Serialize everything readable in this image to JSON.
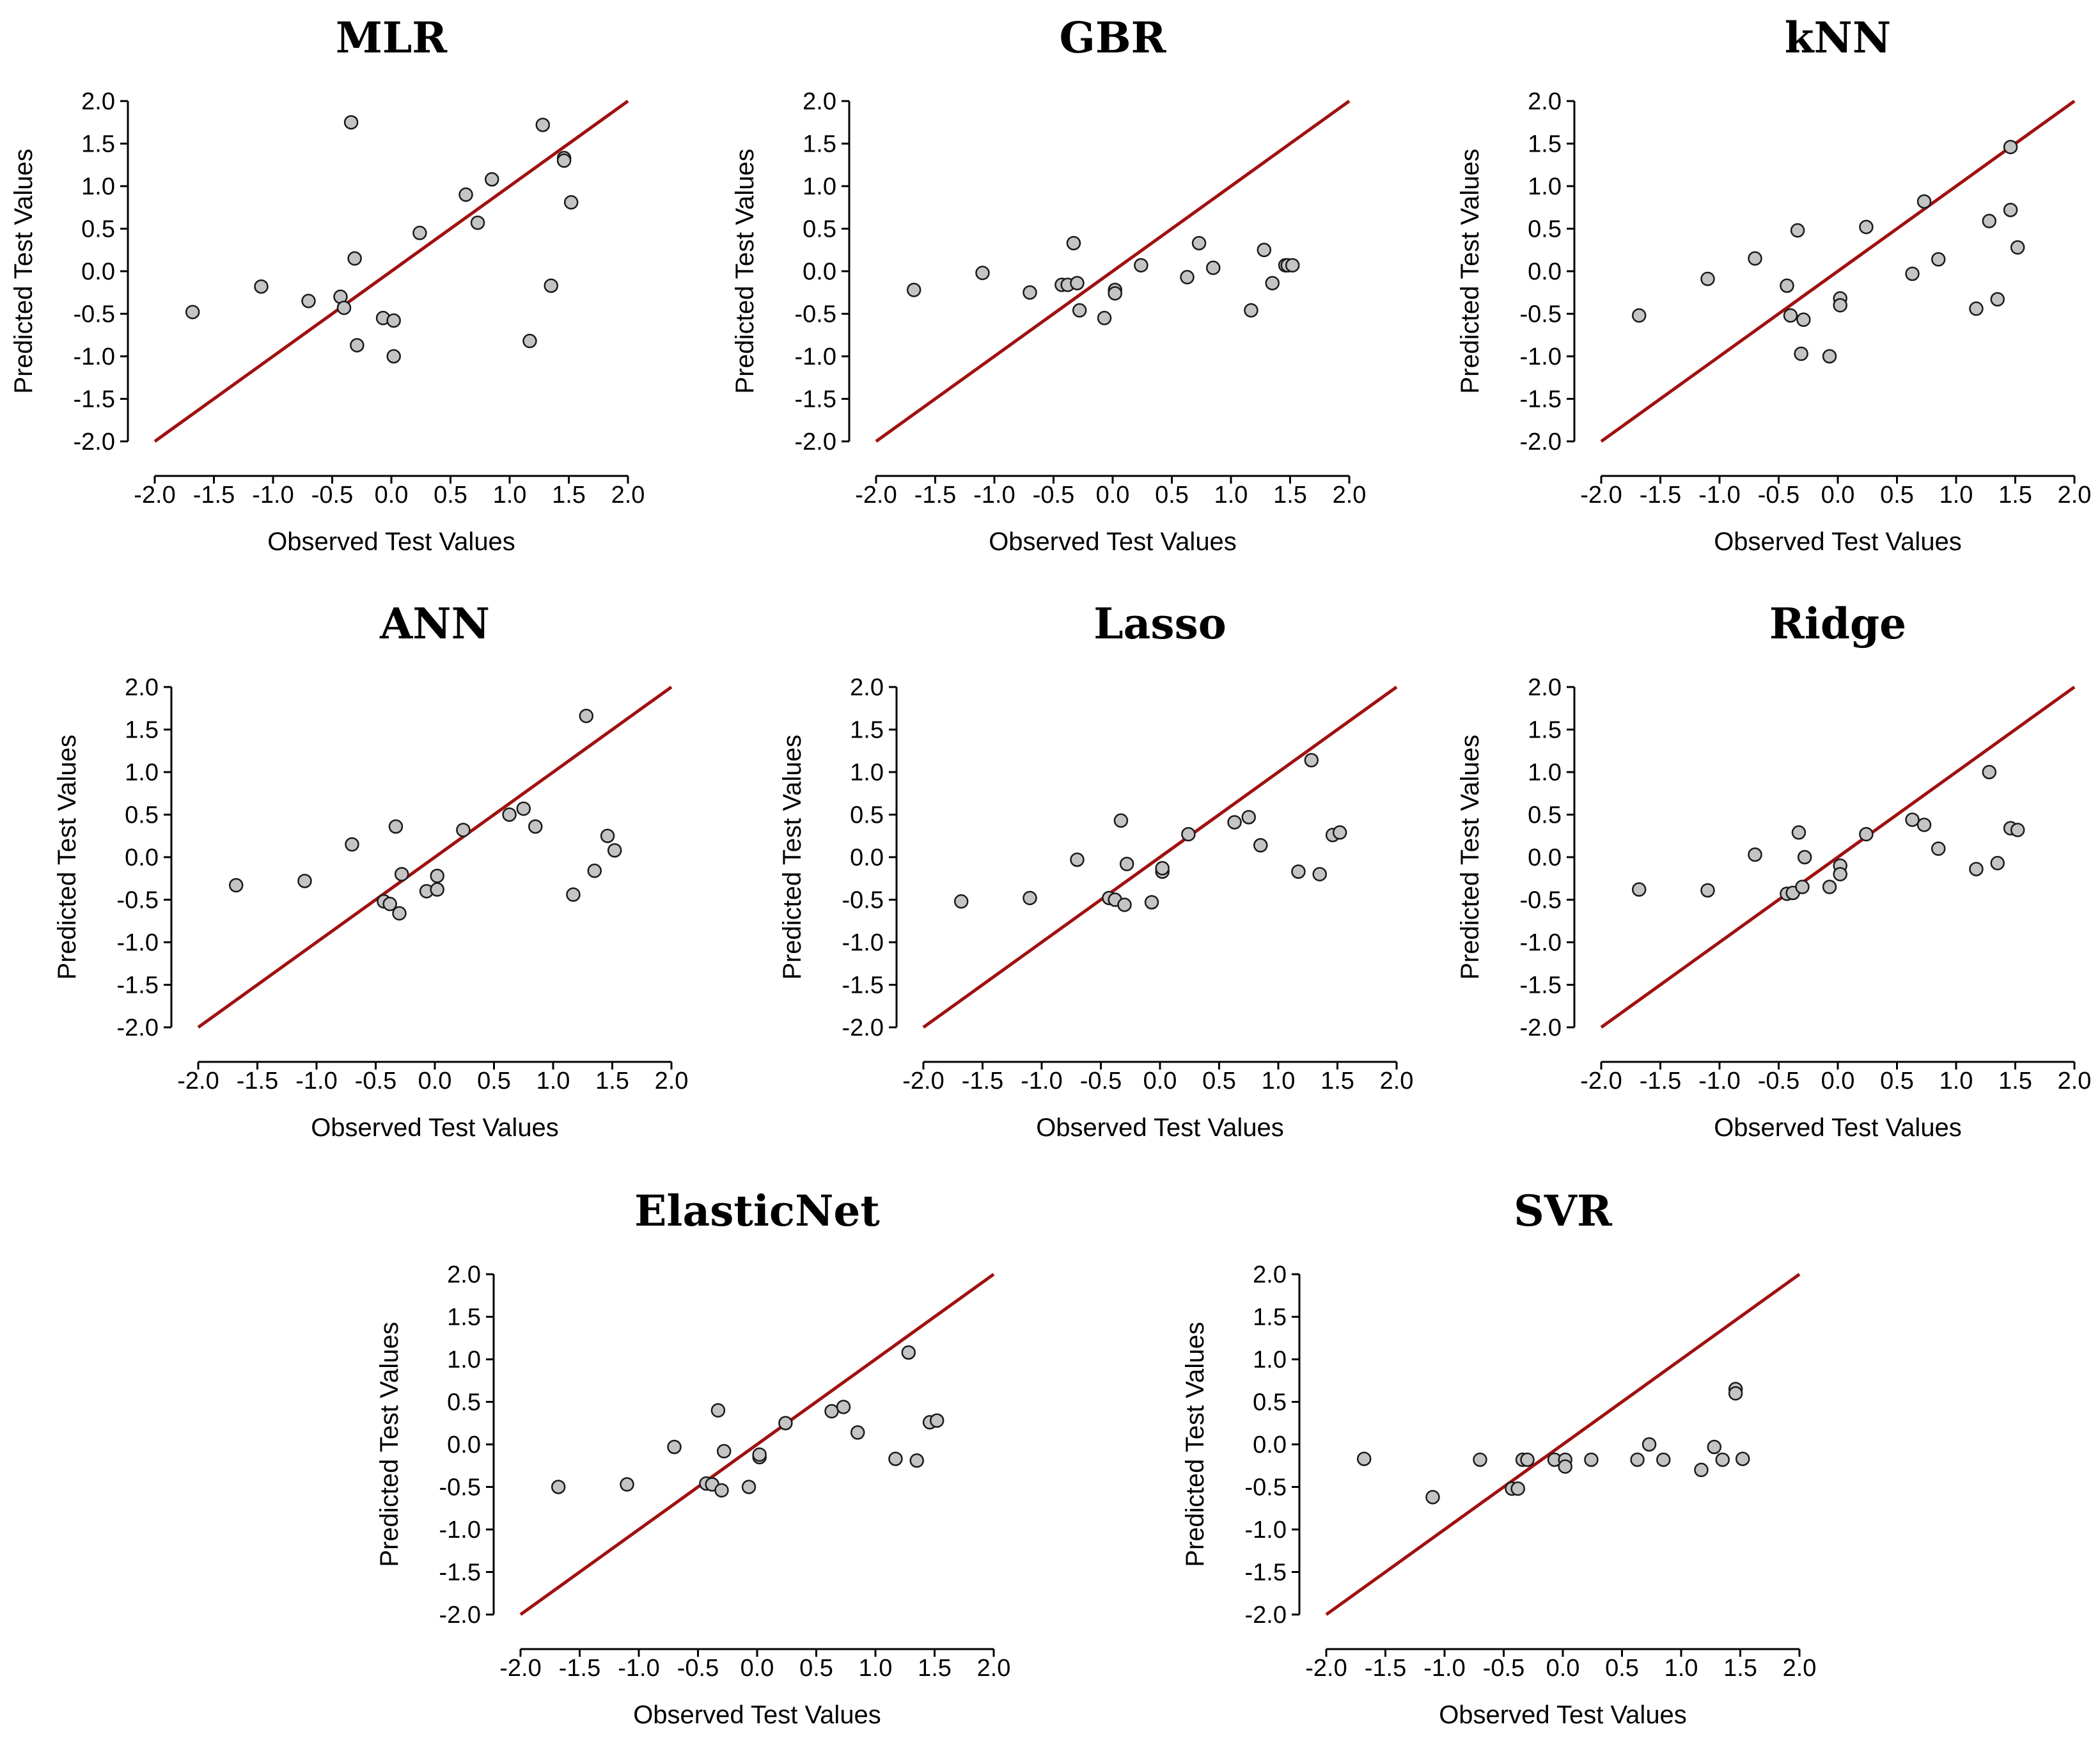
{
  "chart_data": [
    {
      "type": "scatter",
      "title": "MLR",
      "xlabel": "Observed Test Values",
      "ylabel": "Predicted Test Values",
      "xlim": [
        -2.0,
        2.0
      ],
      "ylim": [
        -2.0,
        2.0
      ],
      "xticks": [
        "-2.0",
        "-1.5",
        "-1.0",
        "-0.5",
        "0.0",
        "0.5",
        "1.0",
        "1.5",
        "2.0"
      ],
      "yticks": [
        "-2.0",
        "-1.5",
        "-1.0",
        "-0.5",
        "0.0",
        "0.5",
        "1.0",
        "1.5",
        "2.0"
      ],
      "reference_line": "y = x",
      "colors": {
        "line": "#a01010",
        "point_fill": "#c4c4c4",
        "point_edge": "#1a1a1a"
      },
      "x": [
        -1.68,
        -1.1,
        -0.7,
        -0.43,
        -0.4,
        -0.34,
        -0.31,
        -0.29,
        -0.07,
        0.02,
        0.02,
        0.24,
        0.63,
        0.73,
        0.85,
        1.17,
        1.28,
        1.35,
        1.46,
        1.46,
        1.52
      ],
      "y": [
        -0.48,
        -0.18,
        -0.35,
        -0.3,
        -0.43,
        1.75,
        0.15,
        -0.87,
        -0.55,
        -0.58,
        -1.0,
        0.45,
        0.9,
        0.57,
        1.08,
        -0.82,
        1.72,
        -0.17,
        1.33,
        1.3,
        0.81
      ]
    },
    {
      "type": "scatter",
      "title": "GBR",
      "xlabel": "Observed Test Values",
      "ylabel": "Predicted Test Values",
      "xlim": [
        -2.0,
        2.0
      ],
      "ylim": [
        -2.0,
        2.0
      ],
      "xticks": [
        "-2.0",
        "-1.5",
        "-1.0",
        "-0.5",
        "0.0",
        "0.5",
        "1.0",
        "1.5",
        "2.0"
      ],
      "yticks": [
        "-2.0",
        "-1.5",
        "-1.0",
        "-0.5",
        "0.0",
        "0.5",
        "1.0",
        "1.5",
        "2.0"
      ],
      "reference_line": "y = x",
      "colors": {
        "line": "#a01010",
        "point_fill": "#c4c4c4",
        "point_edge": "#1a1a1a"
      },
      "x": [
        -1.68,
        -1.1,
        -0.7,
        -0.43,
        -0.38,
        -0.33,
        -0.3,
        -0.28,
        -0.07,
        0.02,
        0.02,
        0.24,
        0.63,
        0.73,
        0.85,
        1.17,
        1.28,
        1.35,
        1.46,
        1.48,
        1.52
      ],
      "y": [
        -0.22,
        -0.02,
        -0.25,
        -0.16,
        -0.16,
        0.33,
        -0.14,
        -0.46,
        -0.55,
        -0.22,
        -0.26,
        0.07,
        -0.07,
        0.33,
        0.04,
        -0.46,
        0.25,
        -0.14,
        0.07,
        0.07,
        0.07
      ]
    },
    {
      "type": "scatter",
      "title": "kNN",
      "xlabel": "Observed Test Values",
      "ylabel": "Predicted Test Values",
      "xlim": [
        -2.0,
        2.0
      ],
      "ylim": [
        -2.0,
        2.0
      ],
      "xticks": [
        "-2.0",
        "-1.5",
        "-1.0",
        "-0.5",
        "0.0",
        "0.5",
        "1.0",
        "1.5",
        "2.0"
      ],
      "yticks": [
        "-2.0",
        "-1.5",
        "-1.0",
        "-0.5",
        "0.0",
        "0.5",
        "1.0",
        "1.5",
        "2.0"
      ],
      "reference_line": "y = x",
      "colors": {
        "line": "#a01010",
        "point_fill": "#c4c4c4",
        "point_edge": "#1a1a1a"
      },
      "x": [
        -1.68,
        -1.1,
        -0.7,
        -0.43,
        -0.4,
        -0.34,
        -0.31,
        -0.29,
        -0.07,
        0.02,
        0.02,
        0.24,
        0.63,
        0.73,
        0.85,
        1.17,
        1.28,
        1.35,
        1.46,
        1.46,
        1.52
      ],
      "y": [
        -0.52,
        -0.09,
        0.15,
        -0.17,
        -0.52,
        0.48,
        -0.97,
        -0.57,
        -1.0,
        -0.32,
        -0.4,
        0.52,
        -0.03,
        0.82,
        0.14,
        -0.44,
        0.59,
        -0.33,
        1.46,
        0.72,
        0.28
      ]
    },
    {
      "type": "scatter",
      "title": "ANN",
      "xlabel": "Observed Test Values",
      "ylabel": "Predicted Test Values",
      "xlim": [
        -2.0,
        2.0
      ],
      "ylim": [
        -2.0,
        2.0
      ],
      "xticks": [
        "-2.0",
        "-1.5",
        "-1.0",
        "-0.5",
        "0.0",
        "0.5",
        "1.0",
        "1.5",
        "2.0"
      ],
      "yticks": [
        "-2.0",
        "-1.5",
        "-1.0",
        "-0.5",
        "0.0",
        "0.5",
        "1.0",
        "1.5",
        "2.0"
      ],
      "reference_line": "y = x",
      "colors": {
        "line": "#a01010",
        "point_fill": "#c4c4c4",
        "point_edge": "#1a1a1a"
      },
      "x": [
        -1.68,
        -1.1,
        -0.7,
        -0.43,
        -0.38,
        -0.33,
        -0.3,
        -0.28,
        -0.07,
        0.02,
        0.02,
        0.24,
        0.63,
        0.75,
        0.85,
        1.17,
        1.28,
        1.35,
        1.46,
        1.52
      ],
      "y": [
        -0.33,
        -0.28,
        0.15,
        -0.52,
        -0.55,
        0.36,
        -0.66,
        -0.2,
        -0.4,
        -0.38,
        -0.22,
        0.32,
        0.5,
        0.57,
        0.36,
        -0.44,
        1.66,
        -0.16,
        0.25,
        0.08
      ]
    },
    {
      "type": "scatter",
      "title": "Lasso",
      "xlabel": "Observed Test Values",
      "ylabel": "Predicted Test Values",
      "xlim": [
        -2.0,
        2.0
      ],
      "ylim": [
        -2.0,
        2.0
      ],
      "xticks": [
        "-2.0",
        "-1.5",
        "-1.0",
        "-0.5",
        "0.0",
        "0.5",
        "1.0",
        "1.5",
        "2.0"
      ],
      "yticks": [
        "-2.0",
        "-1.5",
        "-1.0",
        "-0.5",
        "0.0",
        "0.5",
        "1.0",
        "1.5",
        "2.0"
      ],
      "reference_line": "y = x",
      "colors": {
        "line": "#a01010",
        "point_fill": "#c4c4c4",
        "point_edge": "#1a1a1a"
      },
      "x": [
        -1.68,
        -1.1,
        -0.7,
        -0.43,
        -0.38,
        -0.33,
        -0.3,
        -0.28,
        -0.07,
        0.02,
        0.02,
        0.24,
        0.63,
        0.75,
        0.85,
        1.17,
        1.28,
        1.35,
        1.46,
        1.52
      ],
      "y": [
        -0.52,
        -0.48,
        -0.03,
        -0.48,
        -0.5,
        0.43,
        -0.56,
        -0.08,
        -0.53,
        -0.17,
        -0.13,
        0.27,
        0.41,
        0.47,
        0.14,
        -0.17,
        1.14,
        -0.2,
        0.26,
        0.29
      ]
    },
    {
      "type": "scatter",
      "title": "Ridge",
      "xlabel": "Observed Test Values",
      "ylabel": "Predicted Test Values",
      "xlim": [
        -2.0,
        2.0
      ],
      "ylim": [
        -2.0,
        2.0
      ],
      "xticks": [
        "-2.0",
        "-1.5",
        "-1.0",
        "-0.5",
        "0.0",
        "0.5",
        "1.0",
        "1.5",
        "2.0"
      ],
      "yticks": [
        "-2.0",
        "-1.5",
        "-1.0",
        "-0.5",
        "0.0",
        "0.5",
        "1.0",
        "1.5",
        "2.0"
      ],
      "reference_line": "y = x",
      "colors": {
        "line": "#a01010",
        "point_fill": "#c4c4c4",
        "point_edge": "#1a1a1a"
      },
      "x": [
        -1.68,
        -1.1,
        -0.7,
        -0.43,
        -0.38,
        -0.33,
        -0.3,
        -0.28,
        -0.07,
        0.02,
        0.02,
        0.24,
        0.63,
        0.73,
        0.85,
        1.17,
        1.28,
        1.35,
        1.46,
        1.52
      ],
      "y": [
        -0.38,
        -0.39,
        0.03,
        -0.43,
        -0.42,
        0.29,
        -0.35,
        0.0,
        -0.35,
        -0.1,
        -0.2,
        0.27,
        0.44,
        0.38,
        0.1,
        -0.14,
        1.0,
        -0.07,
        0.34,
        0.32
      ]
    },
    {
      "type": "scatter",
      "title": "ElasticNet",
      "xlabel": "Observed Test Values",
      "ylabel": "Predicted Test Values",
      "xlim": [
        -2.0,
        2.0
      ],
      "ylim": [
        -2.0,
        2.0
      ],
      "xticks": [
        "-2.0",
        "-1.5",
        "-1.0",
        "-0.5",
        "0.0",
        "0.5",
        "1.0",
        "1.5",
        "2.0"
      ],
      "yticks": [
        "-2.0",
        "-1.5",
        "-1.0",
        "-0.5",
        "0.0",
        "0.5",
        "1.0",
        "1.5",
        "2.0"
      ],
      "reference_line": "y = x",
      "colors": {
        "line": "#a01010",
        "point_fill": "#c4c4c4",
        "point_edge": "#1a1a1a"
      },
      "x": [
        -1.68,
        -1.1,
        -0.7,
        -0.43,
        -0.38,
        -0.33,
        -0.3,
        -0.28,
        -0.07,
        0.02,
        0.02,
        0.24,
        0.63,
        0.73,
        0.85,
        1.17,
        1.28,
        1.35,
        1.46,
        1.52
      ],
      "y": [
        -0.5,
        -0.47,
        -0.03,
        -0.46,
        -0.47,
        0.4,
        -0.54,
        -0.08,
        -0.5,
        -0.15,
        -0.12,
        0.25,
        0.39,
        0.44,
        0.14,
        -0.17,
        1.08,
        -0.19,
        0.26,
        0.28
      ]
    },
    {
      "type": "scatter",
      "title": "SVR",
      "xlabel": "Observed Test Values",
      "ylabel": "Predicted Test Values",
      "xlim": [
        -2.0,
        2.0
      ],
      "ylim": [
        -2.0,
        2.0
      ],
      "xticks": [
        "-2.0",
        "-1.5",
        "-1.0",
        "-0.5",
        "0.0",
        "0.5",
        "1.0",
        "1.5",
        "2.0"
      ],
      "yticks": [
        "-2.0",
        "-1.5",
        "-1.0",
        "-0.5",
        "0.0",
        "0.5",
        "1.0",
        "1.5",
        "2.0"
      ],
      "reference_line": "y = x",
      "colors": {
        "line": "#a01010",
        "point_fill": "#c4c4c4",
        "point_edge": "#1a1a1a"
      },
      "x": [
        -1.68,
        -1.1,
        -0.7,
        -0.43,
        -0.38,
        -0.34,
        -0.3,
        -0.07,
        0.02,
        0.02,
        0.24,
        0.63,
        0.73,
        0.85,
        1.17,
        1.28,
        1.35,
        1.46,
        1.46,
        1.52
      ],
      "y": [
        -0.17,
        -0.62,
        -0.18,
        -0.52,
        -0.52,
        -0.18,
        -0.18,
        -0.18,
        -0.18,
        -0.26,
        -0.18,
        -0.18,
        0.0,
        -0.18,
        -0.3,
        -0.03,
        -0.18,
        0.65,
        0.6,
        -0.17
      ]
    }
  ]
}
